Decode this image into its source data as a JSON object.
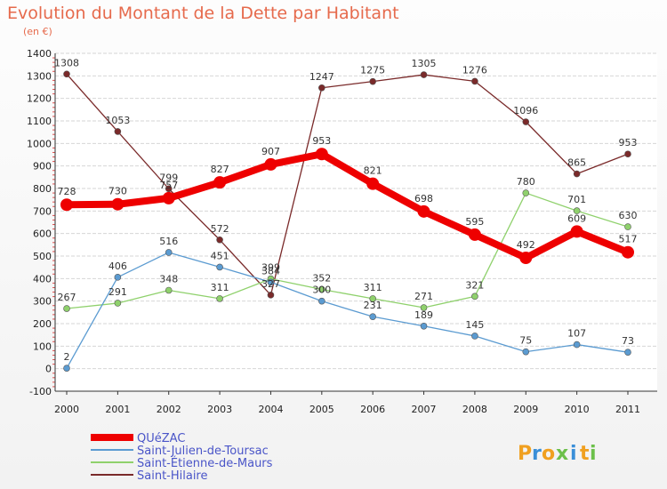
{
  "chart_data": {
    "type": "line",
    "title": "Evolution du Montant de la Dette par Habitant",
    "subtitle": "(en €)",
    "x": [
      "2000",
      "2001",
      "2002",
      "2003",
      "2004",
      "2005",
      "2006",
      "2007",
      "2008",
      "2009",
      "2010",
      "2011"
    ],
    "ylim": [
      -100,
      1400
    ],
    "yticks": [
      -100,
      0,
      100,
      200,
      300,
      400,
      500,
      600,
      700,
      800,
      900,
      1000,
      1100,
      1200,
      1300,
      1400
    ],
    "grid": "horizontal",
    "legend_position": "bottom-left",
    "series": [
      {
        "name": "QUéZAC",
        "color": "#ee0000",
        "values": [
          728,
          730,
          757,
          827,
          907,
          953,
          821,
          698,
          595,
          492,
          609,
          517
        ]
      },
      {
        "name": "Saint-Julien-de-Toursac",
        "color": "#5b9bd1",
        "values": [
          2,
          406,
          516,
          451,
          384,
          300,
          231,
          189,
          145,
          75,
          107,
          73
        ]
      },
      {
        "name": "Saint-Étienne-de-Maurs",
        "color": "#8fd16c",
        "values": [
          267,
          291,
          348,
          311,
          399,
          352,
          311,
          271,
          321,
          780,
          701,
          630
        ]
      },
      {
        "name": "Saint-Hilaire",
        "color": "#7a2a2a",
        "values": [
          1308,
          1053,
          799,
          572,
          327,
          1247,
          1275,
          1305,
          1276,
          1096,
          865,
          953
        ]
      }
    ]
  },
  "logo": {
    "letters": [
      "P",
      "r",
      "o",
      "x",
      "i",
      "t",
      "i"
    ],
    "colors": [
      "#f0a020",
      "#3a8fd8",
      "#f0a020",
      "#6cc04a",
      "#3a8fd8",
      "#f0a020",
      "#6cc04a"
    ]
  }
}
